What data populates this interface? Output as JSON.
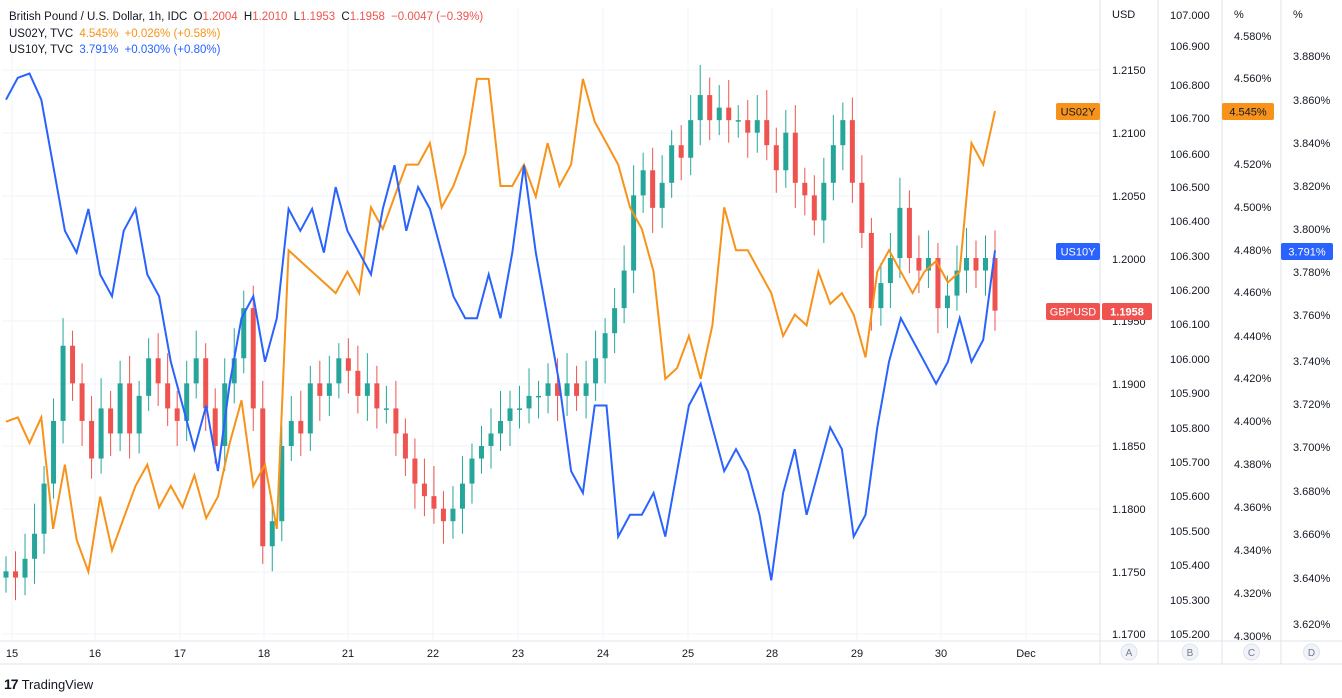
{
  "legend": {
    "main_title": "British Pound / U.S. Dollar, 1h, IDC",
    "o_label": "O",
    "o_value": "1.2004",
    "h_label": "H",
    "h_value": "1.2010",
    "l_label": "L",
    "l_value": "1.1953",
    "c_label": "C",
    "c_value": "1.1958",
    "change": "−0.0047 (−0.39%)",
    "us02y_name": "US02Y, TVC",
    "us02y_value": "4.545%",
    "us02y_change": "+0.026% (+0.58%)",
    "us10y_name": "US10Y, TVC",
    "us10y_value": "3.791%",
    "us10y_change": "+0.030% (+0.80%)"
  },
  "branding": {
    "logo": "17",
    "name": "TradingView"
  },
  "colors": {
    "up": "#26a69a",
    "down": "#ef5350",
    "us02y": "#f7931a",
    "us10y": "#2962ff",
    "grid": "#f0f3fa"
  },
  "chart_data": {
    "type": "line",
    "x_tick_labels": [
      "15",
      "16",
      "17",
      "18",
      "21",
      "22",
      "23",
      "24",
      "25",
      "28",
      "29",
      "30",
      "Dec"
    ],
    "axes": [
      {
        "id": "A",
        "header": "USD",
        "ticks": [
          "1.2150",
          "1.2100",
          "1.2050",
          "1.2000",
          "1.1950",
          "1.1900",
          "1.1850",
          "1.1800",
          "1.1750",
          "1.1700"
        ],
        "range": [
          1.17,
          1.22
        ]
      },
      {
        "id": "B",
        "header": "",
        "ticks": [
          "107.000",
          "106.900",
          "106.800",
          "106.700",
          "106.600",
          "106.500",
          "106.400",
          "106.300",
          "106.200",
          "106.100",
          "106.000",
          "105.900",
          "105.800",
          "105.700",
          "105.600",
          "105.500",
          "105.400",
          "105.300",
          "105.200"
        ],
        "range": [
          105.2,
          107.0
        ]
      },
      {
        "id": "C",
        "header": "%",
        "ticks": [
          "4.580%",
          "4.560%",
          "4.540%",
          "4.520%",
          "4.500%",
          "4.480%",
          "4.460%",
          "4.440%",
          "4.420%",
          "4.400%",
          "4.380%",
          "4.360%",
          "4.340%",
          "4.320%",
          "4.300%"
        ],
        "range": [
          4.3,
          4.59
        ]
      },
      {
        "id": "D",
        "header": "%",
        "ticks": [
          "3.880%",
          "3.860%",
          "3.840%",
          "3.820%",
          "3.800%",
          "3.780%",
          "3.760%",
          "3.740%",
          "3.720%",
          "3.700%",
          "3.680%",
          "3.660%",
          "3.640%",
          "3.620%"
        ],
        "range": [
          3.615,
          3.89
        ]
      }
    ],
    "axis_letters": [
      "A",
      "B",
      "C",
      "D"
    ],
    "series": [
      {
        "name": "GBPUSD",
        "type": "candlestick",
        "axis": "A",
        "last_value": "1.1958",
        "closes": [
          1.175,
          1.1745,
          1.176,
          1.178,
          1.182,
          1.187,
          1.193,
          1.19,
          1.187,
          1.184,
          1.188,
          1.186,
          1.19,
          1.186,
          1.189,
          1.192,
          1.19,
          1.188,
          1.187,
          1.19,
          1.192,
          1.188,
          1.185,
          1.19,
          1.192,
          1.196,
          1.188,
          1.177,
          1.179,
          1.185,
          1.187,
          1.186,
          1.19,
          1.189,
          1.19,
          1.192,
          1.191,
          1.189,
          1.19,
          1.188,
          1.188,
          1.186,
          1.184,
          1.182,
          1.181,
          1.18,
          1.179,
          1.18,
          1.182,
          1.184,
          1.185,
          1.186,
          1.187,
          1.188,
          1.188,
          1.189,
          1.189,
          1.19,
          1.189,
          1.19,
          1.189,
          1.19,
          1.192,
          1.194,
          1.196,
          1.199,
          1.205,
          1.207,
          1.204,
          1.206,
          1.209,
          1.208,
          1.211,
          1.213,
          1.211,
          1.212,
          1.211,
          1.211,
          1.21,
          1.211,
          1.209,
          1.207,
          1.21,
          1.206,
          1.205,
          1.203,
          1.206,
          1.209,
          1.211,
          1.206,
          1.202,
          1.196,
          1.198,
          1.2,
          1.204,
          1.2,
          1.199,
          1.2,
          1.196,
          1.197,
          1.199,
          1.2,
          1.199,
          1.2,
          1.1958
        ]
      },
      {
        "name": "US02Y",
        "type": "line",
        "axis": "C",
        "last_value": "4.545%",
        "values": [
          4.4,
          4.402,
          4.39,
          4.402,
          4.35,
          4.38,
          4.345,
          4.33,
          4.365,
          4.34,
          4.355,
          4.37,
          4.38,
          4.36,
          4.37,
          4.36,
          4.375,
          4.355,
          4.365,
          4.39,
          4.41,
          4.37,
          4.38,
          4.35,
          4.48,
          4.475,
          4.47,
          4.465,
          4.46,
          4.47,
          4.46,
          4.5,
          4.49,
          4.505,
          4.52,
          4.52,
          4.53,
          4.5,
          4.51,
          4.525,
          4.56,
          4.56,
          4.51,
          4.51,
          4.52,
          4.505,
          4.53,
          4.51,
          4.52,
          4.56,
          4.54,
          4.53,
          4.52,
          4.5,
          4.49,
          4.47,
          4.42,
          4.425,
          4.44,
          4.42,
          4.445,
          4.5,
          4.48,
          4.48,
          4.47,
          4.46,
          4.44,
          4.45,
          4.445,
          4.47,
          4.455,
          4.46,
          4.45,
          4.43,
          4.47,
          4.48,
          4.47,
          4.46,
          4.47,
          4.475,
          4.465,
          4.47,
          4.53,
          4.52,
          4.545
        ]
      },
      {
        "name": "US10Y",
        "type": "line",
        "axis": "D",
        "last_value": "3.791%",
        "values": [
          3.86,
          3.87,
          3.872,
          3.86,
          3.83,
          3.8,
          3.79,
          3.81,
          3.78,
          3.77,
          3.8,
          3.81,
          3.78,
          3.77,
          3.74,
          3.72,
          3.7,
          3.72,
          3.69,
          3.73,
          3.76,
          3.77,
          3.74,
          3.76,
          3.81,
          3.8,
          3.81,
          3.79,
          3.82,
          3.8,
          3.79,
          3.78,
          3.81,
          3.83,
          3.8,
          3.82,
          3.81,
          3.79,
          3.77,
          3.76,
          3.76,
          3.78,
          3.76,
          3.79,
          3.83,
          3.79,
          3.76,
          3.73,
          3.69,
          3.68,
          3.72,
          3.72,
          3.66,
          3.67,
          3.67,
          3.68,
          3.66,
          3.69,
          3.72,
          3.73,
          3.71,
          3.69,
          3.7,
          3.69,
          3.67,
          3.64,
          3.68,
          3.7,
          3.67,
          3.69,
          3.71,
          3.7,
          3.66,
          3.67,
          3.71,
          3.74,
          3.76,
          3.75,
          3.74,
          3.73,
          3.74,
          3.76,
          3.74,
          3.75,
          3.791
        ]
      }
    ]
  },
  "tags": {
    "us02y_tag": "US02Y",
    "us10y_tag": "US10Y",
    "gbpusd_tag": "GBPUSD",
    "gbpusd_price": "1.1958",
    "us02y_price": "4.545%",
    "us10y_price": "3.791%"
  }
}
